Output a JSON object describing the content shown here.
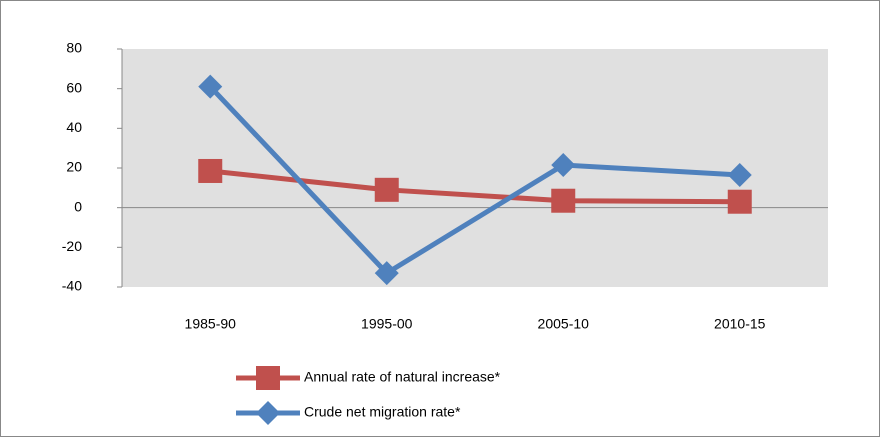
{
  "chart_data": {
    "type": "line",
    "categories": [
      "1985-90",
      "1995-00",
      "2005-10",
      "2010-15"
    ],
    "series": [
      {
        "name": "Annual rate of natural increase*",
        "color": "#c0504d",
        "marker": "square",
        "values": [
          18.5,
          9,
          3.5,
          3
        ]
      },
      {
        "name": "Crude net migration rate*",
        "color": "#4f81bd",
        "marker": "diamond",
        "values": [
          61,
          -33,
          21.5,
          16.5
        ]
      }
    ],
    "ylim": [
      -40,
      80
    ],
    "yticks": [
      -40,
      -20,
      0,
      20,
      40,
      60,
      80
    ],
    "grid": false,
    "legend": "bottom"
  }
}
